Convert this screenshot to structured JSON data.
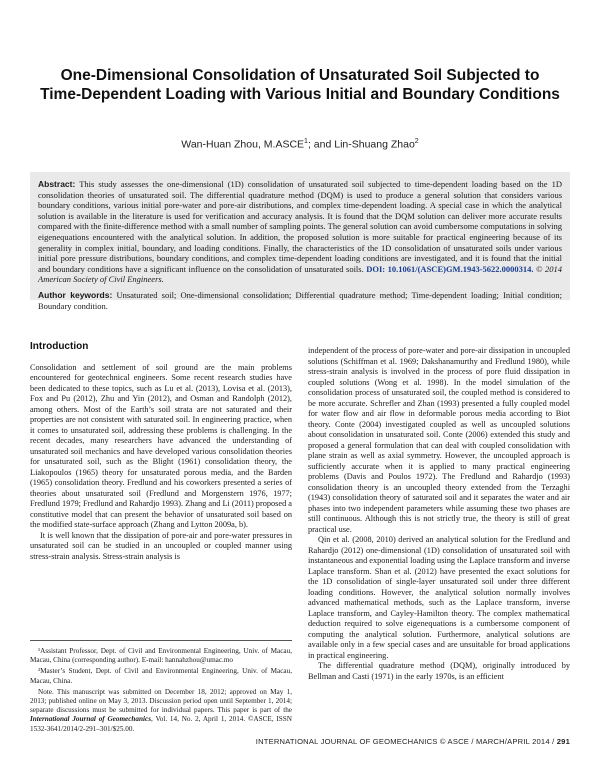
{
  "title": "One-Dimensional Consolidation of Unsaturated Soil Subjected to Time-Dependent Loading with Various Initial and Boundary Conditions",
  "authors": {
    "author1": "Wan-Huan Zhou, M.ASCE",
    "author1_mark": "1",
    "separator": "; and ",
    "author2": "Lin-Shuang Zhao",
    "author2_mark": "2"
  },
  "abstract": {
    "label": "Abstract:",
    "text": "This study assesses the one-dimensional (1D) consolidation of unsaturated soil subjected to time-dependent loading based on the 1D consolidation theories of unsaturated soil. The differential quadrature method (DQM) is used to produce a general solution that considers various boundary conditions, various initial pore-water and pore-air distributions, and complex time-dependent loading. A special case in which the analytical solution is available in the literature is used for verification and accuracy analysis. It is found that the DQM solution can deliver more accurate results compared with the finite-difference method with a small number of sampling points. The general solution can avoid cumbersome computations in solving eigenequations encountered with the analytical solution. In addition, the proposed solution is more suitable for practical engineering because of its generality in complex initial, boundary, and loading conditions. Finally, the characteristics of the 1D consolidation of unsaturated soils under various initial pore pressure distributions, boundary conditions, and complex time-dependent loading conditions are investigated, and it is found that the initial and boundary conditions have a significant influence on the consolidation of unsaturated soils.",
    "doi": "DOI: 10.1061/(ASCE)GM.1943-5622.0000314.",
    "copyright": "© 2014 American Society of Civil Engineers."
  },
  "keywords": {
    "label": "Author keywords:",
    "text": "Unsaturated soil; One-dimensional consolidation; Differential quadrature method; Time-dependent loading; Initial condition; Boundary condition."
  },
  "introduction": {
    "heading": "Introduction",
    "p1": "Consolidation and settlement of soil ground are the main problems encountered for geotechnical engineers. Some recent research studies have been dedicated to these topics, such as Lu et al. (2013), Lovisa et al. (2013), Fox and Pu (2012), Zhu and Yin (2012), and Osman and Randolph (2012), among others. Most of the Earth’s soil strata are not saturated and their properties are not consistent with saturated soil. In engineering practice, when it comes to unsaturated soil, addressing these problems is challenging. In the recent decades, many researchers have advanced the understanding of unsaturated soil mechanics and have developed various consolidation theories for unsaturated soil, such as the Blight (1961) consolidation theory, the Liakopoulos (1965) theory for unsaturated porous media, and the Barden (1965) consolidation theory. Fredlund and his coworkers presented a series of theories about unsaturated soil (Fredlund and Morgenstern 1976, 1977; Fredlund 1979; Fredlund and Rahardjo 1993). Zhang and Li (2011) proposed a constitutive model that can present the behavior of unsaturated soil based on the modified state-surface approach (Zhang and Lytton 2009a, b).",
    "p2": "It is well known that the dissipation of pore-air and pore-water pressures in unsaturated soil can be studied in an uncoupled or coupled manner using stress-strain analysis. Stress-strain analysis is"
  },
  "right_column": {
    "p1": "independent of the process of pore-water and pore-air dissipation in uncoupled solutions (Schiffman et al. 1969; Dakshanamurthy and Fredlund 1980), while stress-strain analysis is involved in the process of pore fluid dissipation in coupled solutions (Wong et al. 1998). In the model simulation of the consolidation process of unsaturated soil, the coupled method is considered to be more accurate. Schrefler and Zhan (1993) presented a fully coupled model for water flow and air flow in deformable porous media according to Biot theory. Conte (2004) investigated coupled as well as uncoupled solutions about consolidation in unsaturated soil. Conte (2006) extended this study and proposed a general formulation that can deal with coupled consolidation with plane strain as well as axial symmetry. However, the uncoupled approach is sufficiently accurate when it is applied to many practical engineering problems (Davis and Poulos 1972). The Fredlund and Rahardjo (1993) consolidation theory is an uncoupled theory extended from the Terzaghi (1943) consolidation theory of saturated soil and it separates the water and air phases into two independent parameters while assuming these two phases are still continuous. Although this is not strictly true, the theory is still of great practical use.",
    "p2": "Qin et al. (2008, 2010) derived an analytical solution for the Fredlund and Rahardjo (2012) one-dimensional (1D) consolidation of unsaturated soil with instantaneous and exponential loading using the Laplace transform and inverse Laplace transform. Shan et al. (2012) have presented the exact solutions for the 1D consolidation of single-layer unsaturated soil under three different loading conditions. However, the analytical solution normally involves advanced mathematical methods, such as the Laplace transform, inverse Laplace transform, and Cayley-Hamilton theory. The complex mathematical deduction required to solve eigenequations is a cumbersome component of computing the analytical solution. Furthermore, analytical solutions are available only in a few special cases and are unsuitable for broad applications in practical engineering.",
    "p3": "The differential quadrature method (DQM), originally introduced by Bellman and Casti (1971) in the early 1970s, is an efficient"
  },
  "footnotes": {
    "fn1": "¹Assistant Professor, Dept. of Civil and Environmental Engineering, Univ. of Macau, Macau, China (corresponding author). E-mail: hannahzhou@umac.mo",
    "fn2": "²Master’s Student, Dept. of Civil and Environmental Engineering, Univ. of Macau, Macau, China.",
    "note_pre": "Note. This manuscript was submitted on December 18, 2012; approved on May 1, 2013; published online on May 3, 2013. Discussion period open until September 1, 2014; separate discussions must be submitted for individual papers. This paper is part of the ",
    "note_journal": "International Journal of Geomechanics",
    "note_post": ", Vol. 14, No. 2, April 1, 2014. ©ASCE, ISSN 1532-3641/2014/2-291–301/$25.00."
  },
  "running_footer": {
    "text": "INTERNATIONAL JOURNAL OF GEOMECHANICS © ASCE / MARCH/APRIL 2014 / ",
    "page": "291"
  }
}
